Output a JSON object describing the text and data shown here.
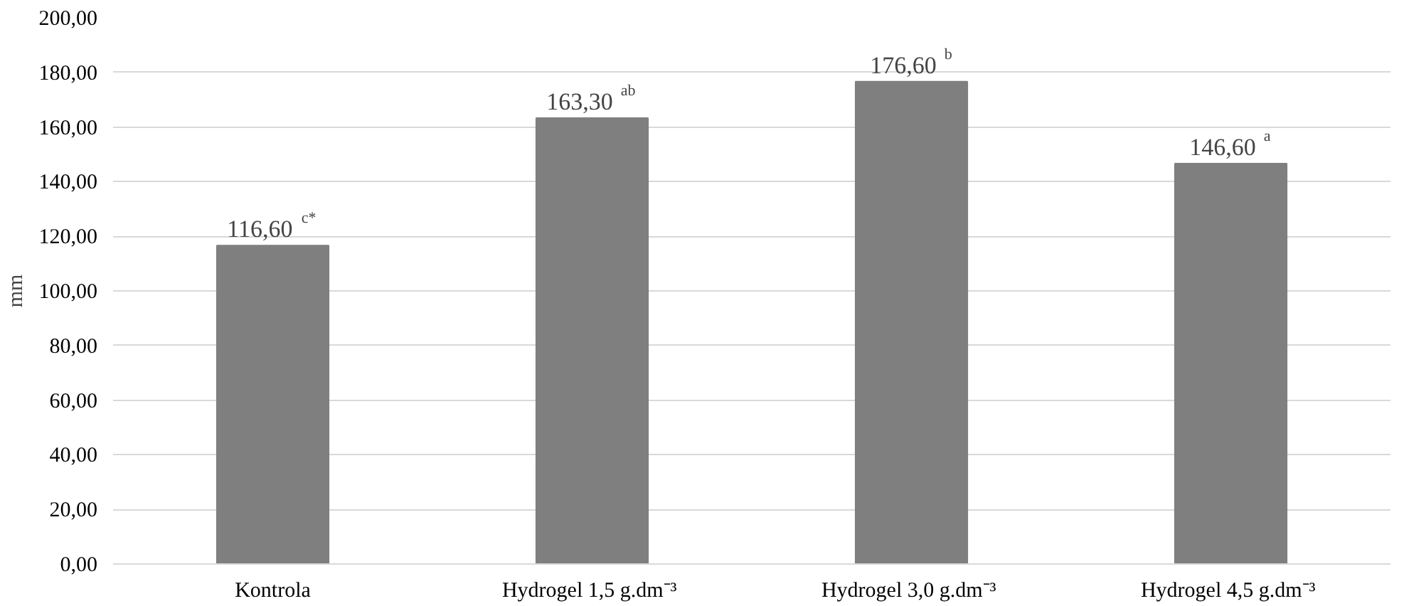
{
  "chart_data": {
    "type": "bar",
    "ylabel": "mm",
    "categories": [
      "Kontrola",
      "Hydrogel  1,5 g.dm⁻³",
      "Hydrogel  3,0 g.dm⁻³",
      "Hydrogel  4,5 g.dm⁻³"
    ],
    "values": [
      116.6,
      163.3,
      176.6,
      146.6
    ],
    "value_labels": [
      "116,60 $^{c*}$",
      "163,30 $^{ab}$",
      "176,60 $^{b}$",
      "146,60 $^{a}$"
    ],
    "color": "#7f7f7f",
    "ylim": [
      0,
      200
    ],
    "yticks": [
      {
        "value": 0,
        "label": "0,00"
      },
      {
        "value": 20,
        "label": "20,00"
      },
      {
        "value": 40,
        "label": "40,00"
      },
      {
        "value": 60,
        "label": "60,00"
      },
      {
        "value": 80,
        "label": "80,00"
      },
      {
        "value": 100,
        "label": "100,00"
      },
      {
        "value": 120,
        "label": "120,00"
      },
      {
        "value": 140,
        "label": "140,00"
      },
      {
        "value": 160,
        "label": "160,00"
      },
      {
        "value": 180,
        "label": "180,00"
      },
      {
        "value": 200,
        "label": "200,00"
      }
    ],
    "grid": "y"
  }
}
